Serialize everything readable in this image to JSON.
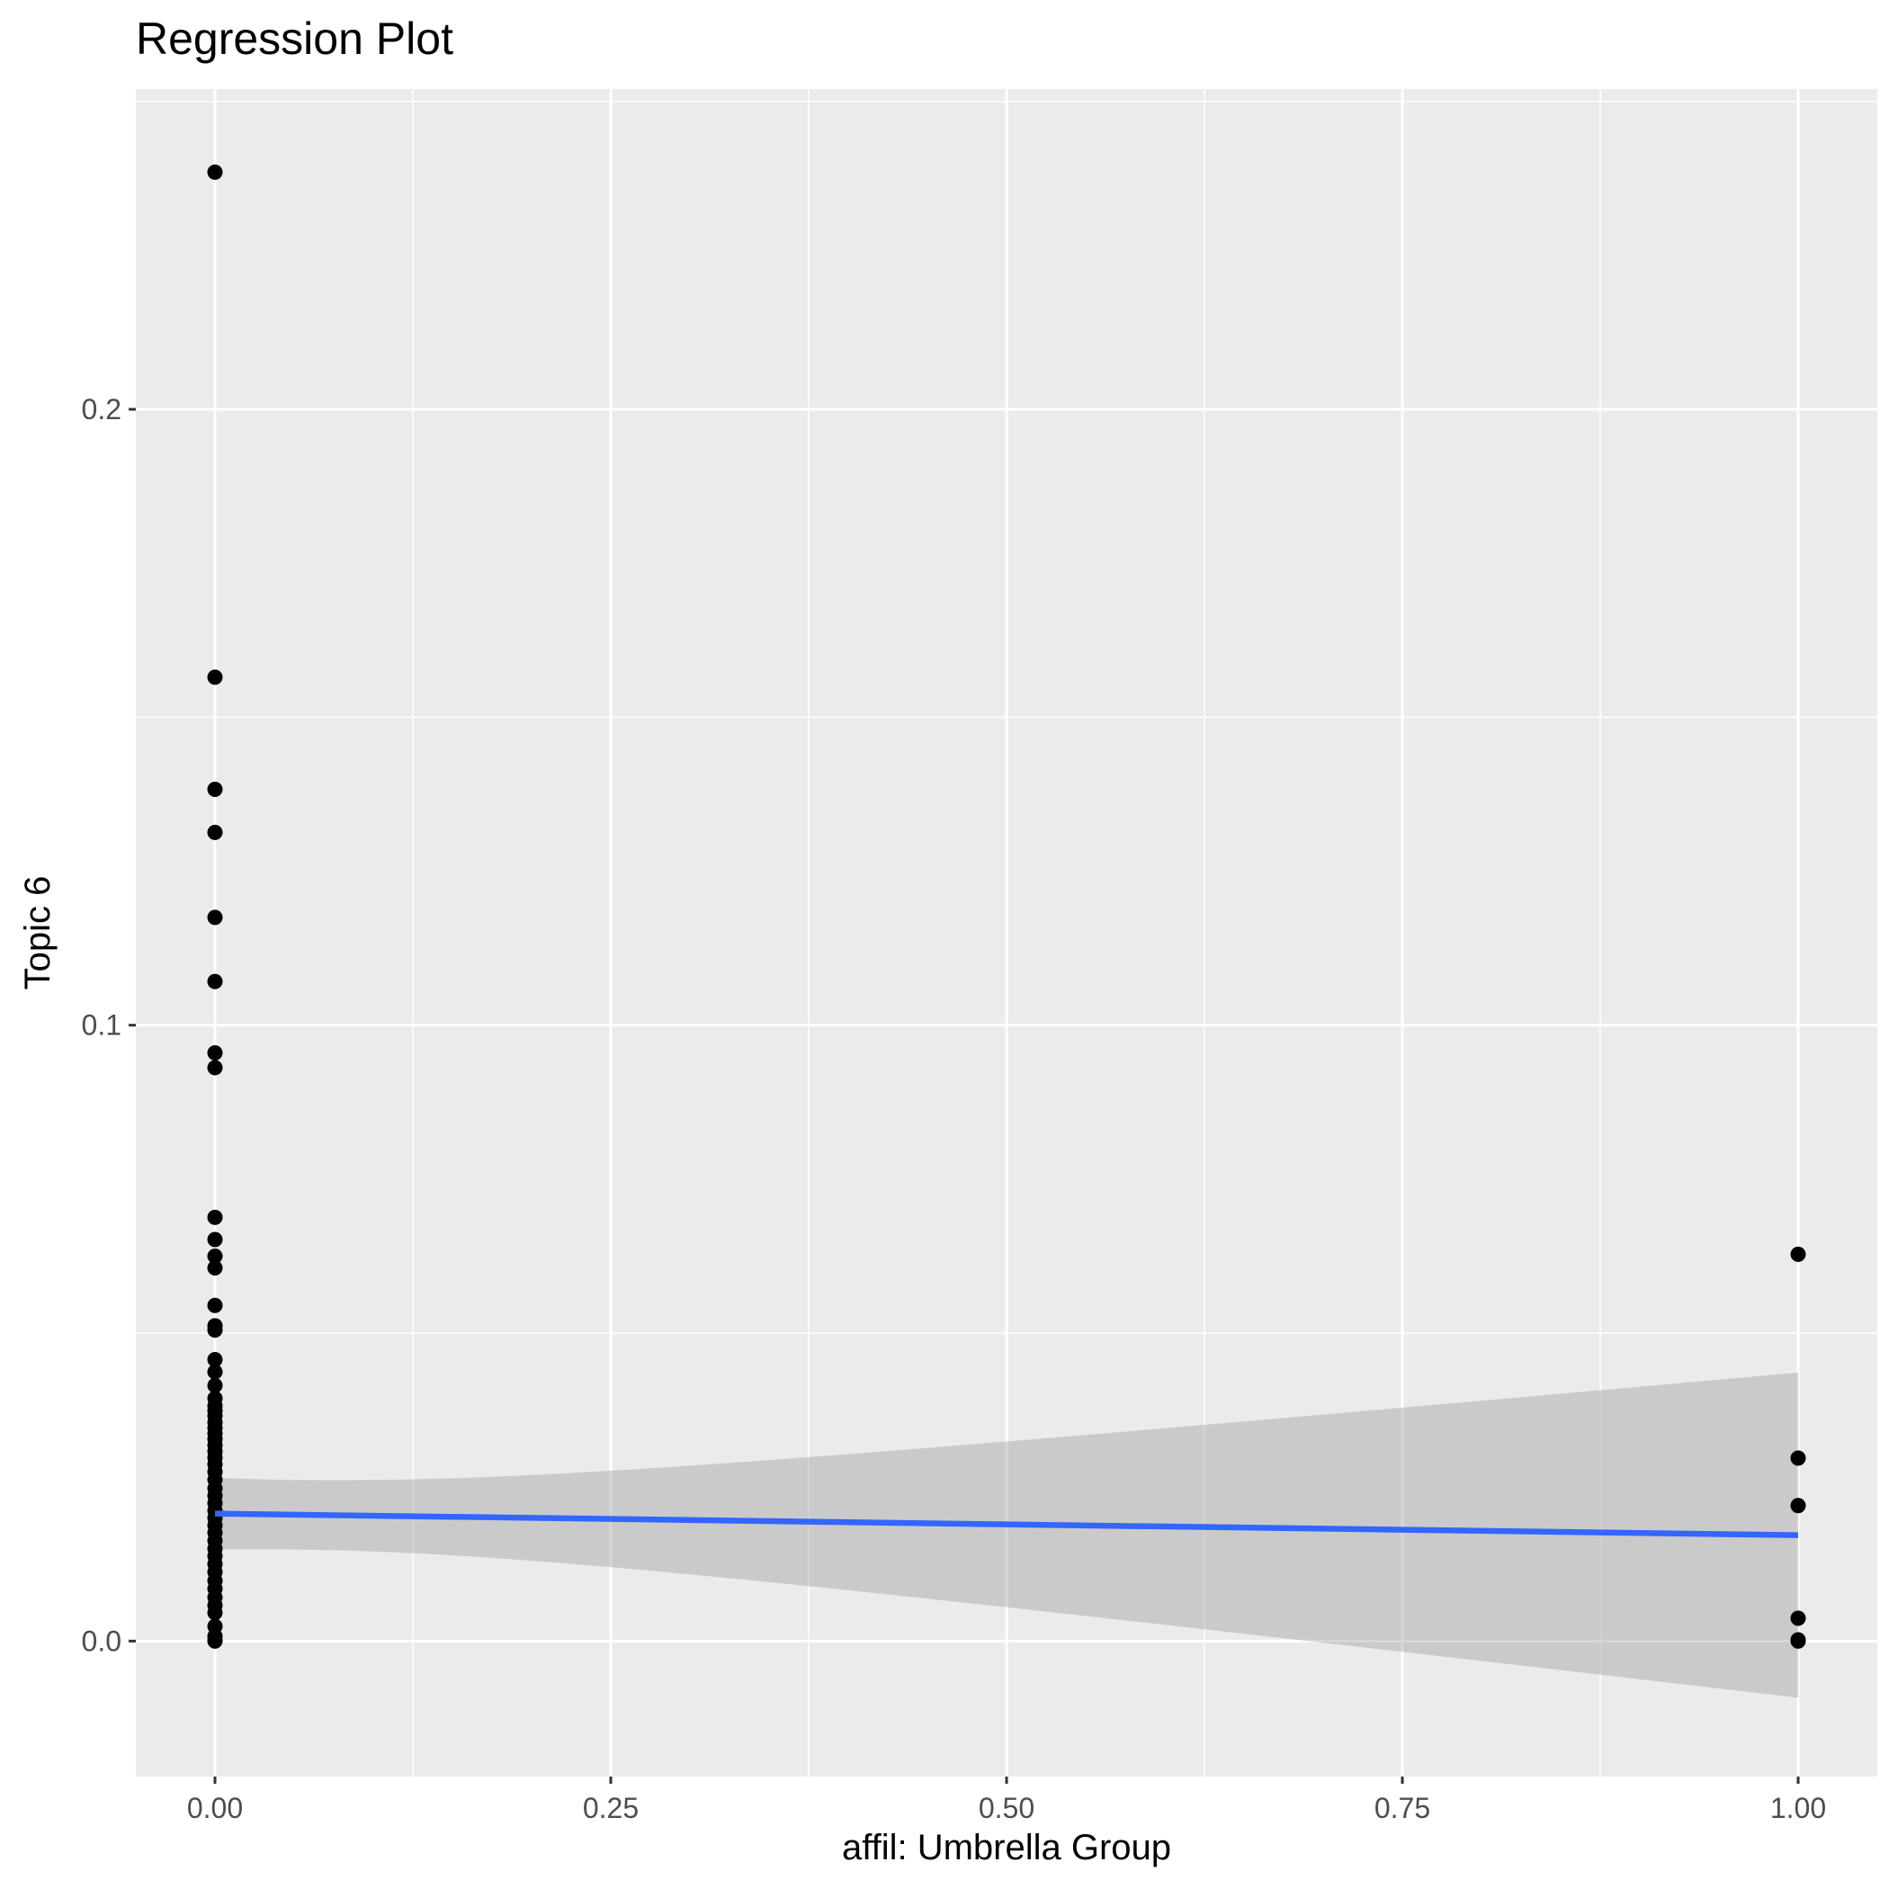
{
  "chart_data": {
    "type": "scatter",
    "title": "Regression Plot",
    "xlabel": "affil: Umbrella Group",
    "ylabel": "Topic 6",
    "xlim": [
      -0.05,
      1.05
    ],
    "ylim": [
      -0.022,
      0.252
    ],
    "x_ticks": [
      0,
      0.25,
      0.5,
      0.75,
      1
    ],
    "x_tick_labels": [
      "0.00",
      "0.25",
      "0.50",
      "0.75",
      "1.00"
    ],
    "y_ticks": [
      0,
      0.1,
      0.2
    ],
    "y_tick_labels": [
      "0.0",
      "0.1",
      "0.2"
    ],
    "grid": true,
    "legend": "none",
    "points": {
      "x0_y": [
        0.2385,
        0.1565,
        0.1383,
        0.1313,
        0.1175,
        0.1071,
        0.0955,
        0.0931,
        0.0688,
        0.0652,
        0.0625,
        0.0606,
        0.0545,
        0.0512,
        0.0505,
        0.0457,
        0.0437,
        0.0415,
        0.0394,
        0.0382,
        0.0374,
        0.0366,
        0.0355,
        0.0346,
        0.0337,
        0.0328,
        0.0318,
        0.0308,
        0.0298,
        0.0287,
        0.0275,
        0.0262,
        0.0248,
        0.0236,
        0.0224,
        0.0212,
        0.02,
        0.0188,
        0.0176,
        0.0163,
        0.015,
        0.0138,
        0.0125,
        0.0112,
        0.0098,
        0.0085,
        0.0071,
        0.0058,
        0.0046,
        0.0024,
        0.0008,
        0.0001,
        0.0
      ],
      "x1_y": [
        0.0628,
        0.0297,
        0.022,
        0.0037,
        0.0002,
        0.0
      ]
    },
    "regression": {
      "x": [
        0,
        1
      ],
      "y": [
        0.0207,
        0.0172
      ],
      "ci_lower": [
        0.0148,
        -0.0094
      ],
      "ci_upper": [
        0.0264,
        0.0434
      ]
    },
    "colors": {
      "panel_background": "#ebebeb",
      "grid_major": "#ffffff",
      "points": "#000000",
      "line": "#3366ff",
      "ribbon": "#999999",
      "tick_text": "#4d4d4d",
      "tick_mark": "#333333"
    }
  }
}
